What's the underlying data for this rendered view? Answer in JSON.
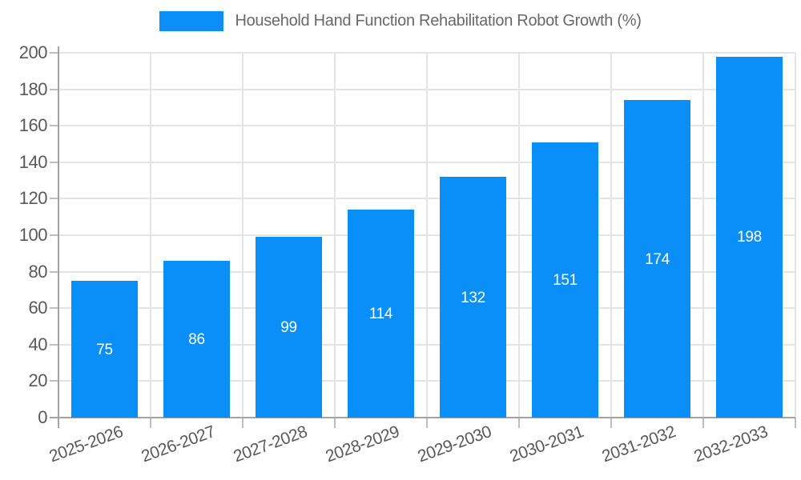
{
  "chart_data": {
    "type": "bar",
    "title": "Household Hand Function Rehabilitation Robot Growth (%)",
    "categories": [
      "2025-2026",
      "2026-2027",
      "2027-2028",
      "2028-2029",
      "2029-2030",
      "2030-2031",
      "2031-2032",
      "2032-2033"
    ],
    "values": [
      75,
      86,
      99,
      114,
      132,
      151,
      174,
      198
    ],
    "xlabel": "",
    "ylabel": "",
    "ylim": [
      0,
      200
    ],
    "ytick_step": 20,
    "grid": true,
    "legend_position": "top-center",
    "bar_color": "#0a8ef8",
    "value_label_color": "#ffffff",
    "axis_text_color": "#595959",
    "legend_text_color": "#686868",
    "grid_color": "#e4e4e4",
    "axis_line_color": "#a3a3a3"
  }
}
